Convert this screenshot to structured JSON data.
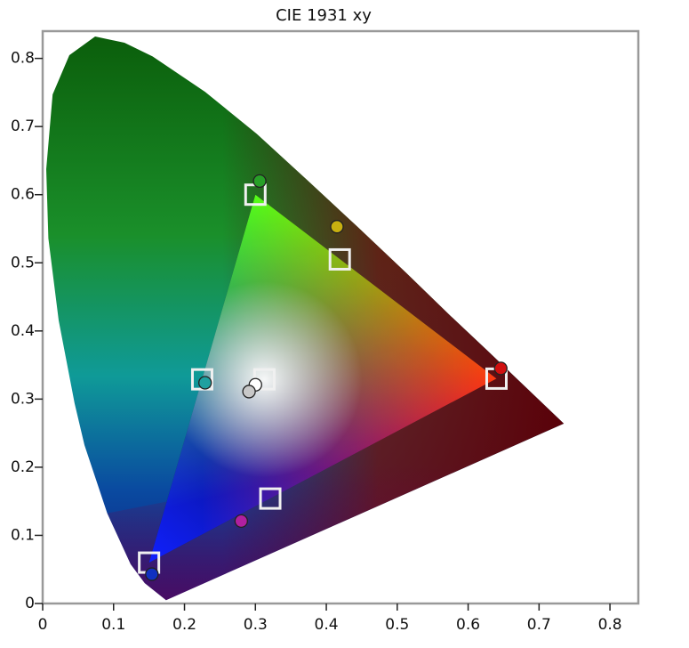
{
  "chart_data": {
    "type": "scatter",
    "title": "CIE 1931 xy",
    "xlim": [
      0,
      0.84
    ],
    "ylim": [
      0,
      0.84
    ],
    "xticks": [
      0,
      0.1,
      0.2,
      0.3,
      0.4,
      0.5,
      0.6,
      0.7,
      0.8
    ],
    "yticks": [
      0,
      0.1,
      0.2,
      0.3,
      0.4,
      0.5,
      0.6,
      0.7,
      0.8
    ],
    "series": [
      {
        "marker": "square",
        "color": "#f0f0f0",
        "x": [
          0.64,
          0.3,
          0.15,
          0.225,
          0.321,
          0.419,
          0.3127
        ],
        "values": [
          0.33,
          0.6,
          0.06,
          0.329,
          0.154,
          0.505,
          0.329
        ]
      },
      {
        "marker": "circle",
        "colors": [
          "#d01010",
          "#28a028",
          "#1030c0",
          "#20a0a0",
          "#b020a0",
          "#c8b010",
          "#ffffff",
          "#c8c8c8"
        ],
        "x": [
          0.646,
          0.306,
          0.154,
          0.229,
          0.28,
          0.415,
          0.3,
          0.291
        ],
        "values": [
          0.345,
          0.62,
          0.043,
          0.324,
          0.121,
          0.553,
          0.321,
          0.311
        ]
      }
    ]
  }
}
